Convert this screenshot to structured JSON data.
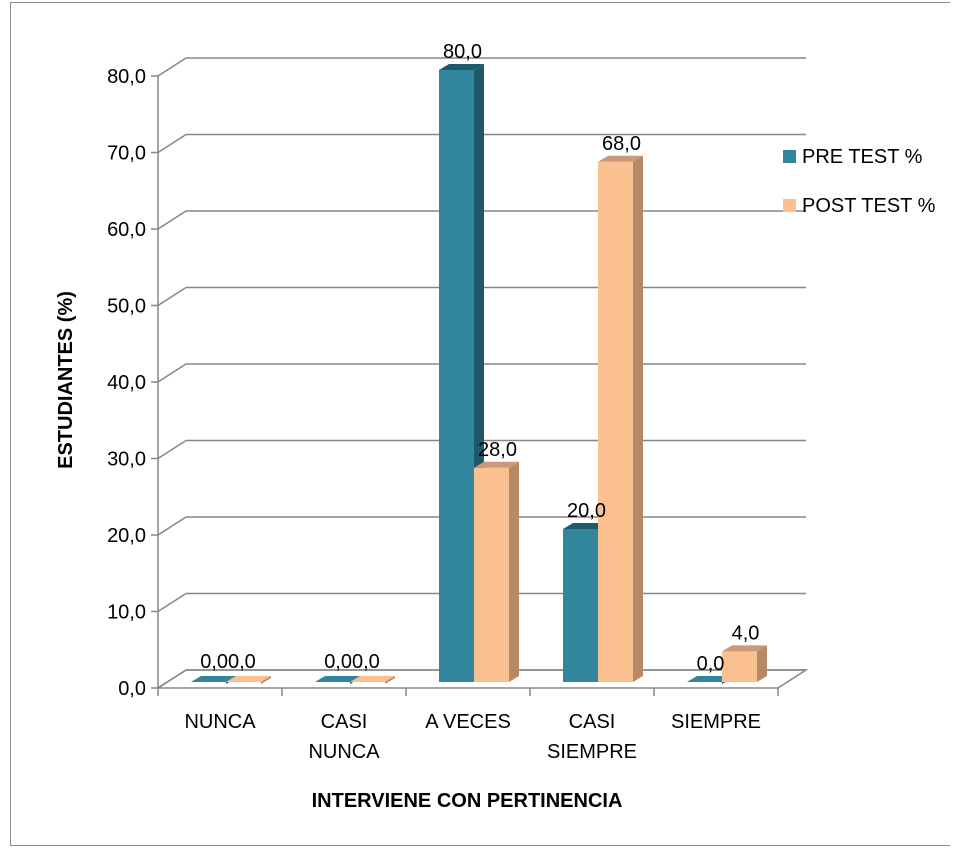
{
  "chart_data": {
    "type": "bar",
    "three_d": true,
    "categories": [
      [
        "NUNCA"
      ],
      [
        "CASI",
        "NUNCA"
      ],
      [
        "A VECES"
      ],
      [
        "CASI",
        "SIEMPRE"
      ],
      [
        "SIEMPRE"
      ]
    ],
    "series": [
      {
        "name": "PRE TEST %",
        "values": [
          0.0,
          0.0,
          80.0,
          20.0,
          0.0
        ],
        "labels": [
          "0,0",
          "0,0",
          "80,0",
          "20,0",
          "0,0"
        ]
      },
      {
        "name": "POST TEST %",
        "values": [
          0.0,
          0.0,
          28.0,
          68.0,
          4.0
        ],
        "labels": [
          "0,0",
          "0,0",
          "28,0",
          "68,0",
          "4,0"
        ]
      }
    ],
    "yticks": [
      "0,0",
      "10,0",
      "20,0",
      "30,0",
      "40,0",
      "50,0",
      "60,0",
      "70,0",
      "80,0"
    ],
    "ylim": [
      0,
      80
    ],
    "ylabel": "ESTUDIANTES (%)",
    "xlabel": "INTERVIENE CON PERTINENCIA",
    "grid": true,
    "legend_position": "right",
    "colors": {
      "pre_front": "#31859c",
      "pre_side": "#205867",
      "pre_top": "#1f5a69",
      "post_front": "#fac090",
      "post_side": "#b58a68",
      "post_top": "#c8997a",
      "grid": "#868686"
    }
  }
}
